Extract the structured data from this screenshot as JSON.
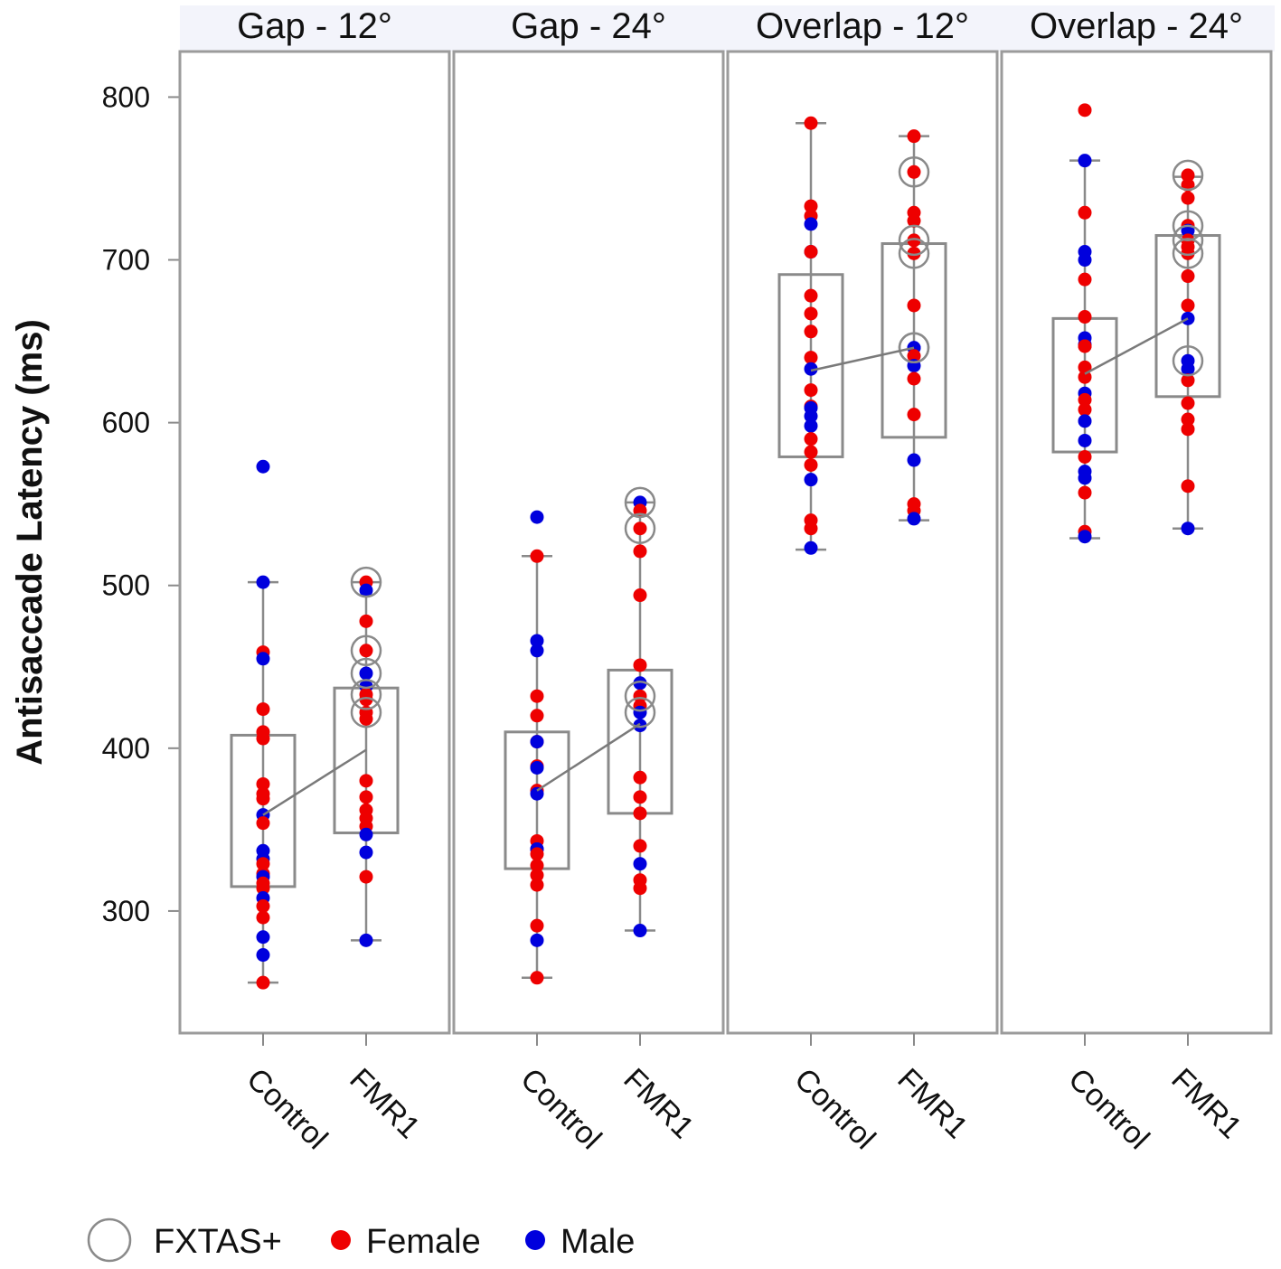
{
  "chart_data": {
    "type": "box-dot",
    "ylabel": "Antisaccade Latency (ms)",
    "ylim": [
      225,
      828
    ],
    "yticks": [
      300,
      400,
      500,
      600,
      700,
      800
    ],
    "categories": [
      "Control",
      "FMR1"
    ],
    "colors": {
      "female": "#ee0000",
      "male": "#0000dd",
      "box": "#8a8a8a",
      "fxtas": "#8a8a8a",
      "header_bg": "#f3f4fb"
    },
    "legend": {
      "fxtas": "FXTAS+",
      "female": "Female",
      "male": "Male"
    },
    "panels": [
      {
        "title": "Gap - 12°",
        "groups": [
          {
            "name": "Control",
            "box": {
              "q1": 315,
              "median": 359,
              "q3": 408,
              "whisker_low": 256,
              "whisker_high": 502
            },
            "points": [
              {
                "v": 573,
                "sex": "male"
              },
              {
                "v": 502,
                "sex": "male"
              },
              {
                "v": 459,
                "sex": "female"
              },
              {
                "v": 455,
                "sex": "male"
              },
              {
                "v": 424,
                "sex": "female"
              },
              {
                "v": 410,
                "sex": "female"
              },
              {
                "v": 406,
                "sex": "female"
              },
              {
                "v": 378,
                "sex": "female"
              },
              {
                "v": 372,
                "sex": "female"
              },
              {
                "v": 369,
                "sex": "female"
              },
              {
                "v": 359,
                "sex": "male"
              },
              {
                "v": 354,
                "sex": "female"
              },
              {
                "v": 337,
                "sex": "male"
              },
              {
                "v": 332,
                "sex": "male"
              },
              {
                "v": 329,
                "sex": "female"
              },
              {
                "v": 323,
                "sex": "female"
              },
              {
                "v": 321,
                "sex": "male"
              },
              {
                "v": 317,
                "sex": "female"
              },
              {
                "v": 314,
                "sex": "female"
              },
              {
                "v": 308,
                "sex": "male"
              },
              {
                "v": 303,
                "sex": "female"
              },
              {
                "v": 296,
                "sex": "female"
              },
              {
                "v": 284,
                "sex": "male"
              },
              {
                "v": 273,
                "sex": "male"
              },
              {
                "v": 256,
                "sex": "female"
              }
            ]
          },
          {
            "name": "FMR1",
            "box": {
              "q1": 348,
              "median": 399,
              "q3": 437,
              "whisker_low": 282,
              "whisker_high": 502
            },
            "points": [
              {
                "v": 502,
                "sex": "female",
                "fxtas": true
              },
              {
                "v": 497,
                "sex": "male"
              },
              {
                "v": 478,
                "sex": "female"
              },
              {
                "v": 460,
                "sex": "female",
                "fxtas": true
              },
              {
                "v": 446,
                "sex": "male",
                "fxtas": true
              },
              {
                "v": 438,
                "sex": "male"
              },
              {
                "v": 433,
                "sex": "female",
                "fxtas": true
              },
              {
                "v": 430,
                "sex": "female"
              },
              {
                "v": 422,
                "sex": "female",
                "fxtas": true
              },
              {
                "v": 418,
                "sex": "female"
              },
              {
                "v": 380,
                "sex": "female"
              },
              {
                "v": 370,
                "sex": "female"
              },
              {
                "v": 362,
                "sex": "female"
              },
              {
                "v": 357,
                "sex": "female"
              },
              {
                "v": 352,
                "sex": "female"
              },
              {
                "v": 347,
                "sex": "male"
              },
              {
                "v": 336,
                "sex": "male"
              },
              {
                "v": 321,
                "sex": "female"
              },
              {
                "v": 282,
                "sex": "male"
              }
            ]
          }
        ]
      },
      {
        "title": "Gap - 24°",
        "groups": [
          {
            "name": "Control",
            "box": {
              "q1": 326,
              "median": 374,
              "q3": 410,
              "whisker_low": 259,
              "whisker_high": 518
            },
            "points": [
              {
                "v": 542,
                "sex": "male"
              },
              {
                "v": 518,
                "sex": "female"
              },
              {
                "v": 466,
                "sex": "male"
              },
              {
                "v": 460,
                "sex": "male"
              },
              {
                "v": 432,
                "sex": "female"
              },
              {
                "v": 420,
                "sex": "female"
              },
              {
                "v": 404,
                "sex": "female"
              },
              {
                "v": 404,
                "sex": "male"
              },
              {
                "v": 389,
                "sex": "female"
              },
              {
                "v": 388,
                "sex": "male"
              },
              {
                "v": 374,
                "sex": "female"
              },
              {
                "v": 372,
                "sex": "male"
              },
              {
                "v": 343,
                "sex": "female"
              },
              {
                "v": 338,
                "sex": "male"
              },
              {
                "v": 338,
                "sex": "male"
              },
              {
                "v": 335,
                "sex": "female"
              },
              {
                "v": 328,
                "sex": "female"
              },
              {
                "v": 322,
                "sex": "female"
              },
              {
                "v": 316,
                "sex": "female"
              },
              {
                "v": 291,
                "sex": "female"
              },
              {
                "v": 282,
                "sex": "male"
              },
              {
                "v": 259,
                "sex": "female"
              }
            ]
          },
          {
            "name": "FMR1",
            "box": {
              "q1": 360,
              "median": 415,
              "q3": 448,
              "whisker_low": 288,
              "whisker_high": 551
            },
            "points": [
              {
                "v": 551,
                "sex": "male",
                "fxtas": true
              },
              {
                "v": 546,
                "sex": "female"
              },
              {
                "v": 535,
                "sex": "female",
                "fxtas": true
              },
              {
                "v": 521,
                "sex": "female"
              },
              {
                "v": 494,
                "sex": "female"
              },
              {
                "v": 451,
                "sex": "female"
              },
              {
                "v": 440,
                "sex": "male"
              },
              {
                "v": 432,
                "sex": "female",
                "fxtas": true
              },
              {
                "v": 426,
                "sex": "female"
              },
              {
                "v": 422,
                "sex": "male",
                "fxtas": true
              },
              {
                "v": 414,
                "sex": "male"
              },
              {
                "v": 382,
                "sex": "female"
              },
              {
                "v": 370,
                "sex": "female"
              },
              {
                "v": 360,
                "sex": "female"
              },
              {
                "v": 340,
                "sex": "female"
              },
              {
                "v": 329,
                "sex": "male"
              },
              {
                "v": 319,
                "sex": "female"
              },
              {
                "v": 314,
                "sex": "female"
              },
              {
                "v": 288,
                "sex": "male"
              }
            ]
          }
        ]
      },
      {
        "title": "Overlap - 12°",
        "groups": [
          {
            "name": "Control",
            "box": {
              "q1": 579,
              "median": 632,
              "q3": 691,
              "whisker_low": 522,
              "whisker_high": 784
            },
            "points": [
              {
                "v": 784,
                "sex": "female"
              },
              {
                "v": 733,
                "sex": "female"
              },
              {
                "v": 727,
                "sex": "female"
              },
              {
                "v": 722,
                "sex": "male"
              },
              {
                "v": 705,
                "sex": "male"
              },
              {
                "v": 705,
                "sex": "female"
              },
              {
                "v": 678,
                "sex": "female"
              },
              {
                "v": 667,
                "sex": "female"
              },
              {
                "v": 656,
                "sex": "female"
              },
              {
                "v": 640,
                "sex": "female"
              },
              {
                "v": 633,
                "sex": "male"
              },
              {
                "v": 620,
                "sex": "female"
              },
              {
                "v": 610,
                "sex": "female"
              },
              {
                "v": 609,
                "sex": "male"
              },
              {
                "v": 604,
                "sex": "male"
              },
              {
                "v": 598,
                "sex": "male"
              },
              {
                "v": 590,
                "sex": "female"
              },
              {
                "v": 582,
                "sex": "female"
              },
              {
                "v": 574,
                "sex": "female"
              },
              {
                "v": 565,
                "sex": "male"
              },
              {
                "v": 540,
                "sex": "female"
              },
              {
                "v": 535,
                "sex": "female"
              },
              {
                "v": 523,
                "sex": "male"
              }
            ]
          },
          {
            "name": "FMR1",
            "box": {
              "q1": 591,
              "median": 646,
              "q3": 710,
              "whisker_low": 540,
              "whisker_high": 776
            },
            "points": [
              {
                "v": 776,
                "sex": "female"
              },
              {
                "v": 754,
                "sex": "female",
                "fxtas": true
              },
              {
                "v": 729,
                "sex": "female"
              },
              {
                "v": 724,
                "sex": "female"
              },
              {
                "v": 712,
                "sex": "female",
                "fxtas": true
              },
              {
                "v": 704,
                "sex": "female",
                "fxtas": true
              },
              {
                "v": 672,
                "sex": "female"
              },
              {
                "v": 646,
                "sex": "male",
                "fxtas": true
              },
              {
                "v": 646,
                "sex": "male",
                "fxtas": true
              },
              {
                "v": 641,
                "sex": "female"
              },
              {
                "v": 635,
                "sex": "male"
              },
              {
                "v": 627,
                "sex": "female"
              },
              {
                "v": 605,
                "sex": "female"
              },
              {
                "v": 577,
                "sex": "male"
              },
              {
                "v": 550,
                "sex": "female"
              },
              {
                "v": 546,
                "sex": "female"
              },
              {
                "v": 541,
                "sex": "male"
              }
            ]
          }
        ]
      },
      {
        "title": "Overlap - 24°",
        "groups": [
          {
            "name": "Control",
            "box": {
              "q1": 582,
              "median": 630,
              "q3": 664,
              "whisker_low": 529,
              "whisker_high": 761
            },
            "points": [
              {
                "v": 792,
                "sex": "female"
              },
              {
                "v": 761,
                "sex": "male"
              },
              {
                "v": 729,
                "sex": "female"
              },
              {
                "v": 705,
                "sex": "male"
              },
              {
                "v": 700,
                "sex": "male"
              },
              {
                "v": 688,
                "sex": "female"
              },
              {
                "v": 665,
                "sex": "female"
              },
              {
                "v": 652,
                "sex": "male"
              },
              {
                "v": 648,
                "sex": "male"
              },
              {
                "v": 647,
                "sex": "female"
              },
              {
                "v": 647,
                "sex": "female"
              },
              {
                "v": 634,
                "sex": "female"
              },
              {
                "v": 628,
                "sex": "female"
              },
              {
                "v": 618,
                "sex": "male"
              },
              {
                "v": 614,
                "sex": "female"
              },
              {
                "v": 608,
                "sex": "female"
              },
              {
                "v": 601,
                "sex": "male"
              },
              {
                "v": 589,
                "sex": "male"
              },
              {
                "v": 579,
                "sex": "female"
              },
              {
                "v": 570,
                "sex": "male"
              },
              {
                "v": 566,
                "sex": "male"
              },
              {
                "v": 557,
                "sex": "female"
              },
              {
                "v": 533,
                "sex": "female"
              },
              {
                "v": 530,
                "sex": "male"
              }
            ]
          },
          {
            "name": "FMR1",
            "box": {
              "q1": 616,
              "median": 664,
              "q3": 715,
              "whisker_low": 535,
              "whisker_high": 751
            },
            "points": [
              {
                "v": 752,
                "sex": "female",
                "fxtas": true
              },
              {
                "v": 746,
                "sex": "female"
              },
              {
                "v": 738,
                "sex": "female"
              },
              {
                "v": 721,
                "sex": "female",
                "fxtas": true
              },
              {
                "v": 718,
                "sex": "male"
              },
              {
                "v": 712,
                "sex": "female",
                "fxtas": true
              },
              {
                "v": 708,
                "sex": "female"
              },
              {
                "v": 704,
                "sex": "female",
                "fxtas": true
              },
              {
                "v": 690,
                "sex": "female"
              },
              {
                "v": 672,
                "sex": "female"
              },
              {
                "v": 664,
                "sex": "male"
              },
              {
                "v": 638,
                "sex": "male",
                "fxtas": true
              },
              {
                "v": 633,
                "sex": "male"
              },
              {
                "v": 626,
                "sex": "female"
              },
              {
                "v": 612,
                "sex": "female"
              },
              {
                "v": 602,
                "sex": "female"
              },
              {
                "v": 596,
                "sex": "female"
              },
              {
                "v": 561,
                "sex": "female"
              },
              {
                "v": 535,
                "sex": "male"
              }
            ]
          }
        ]
      }
    ]
  }
}
